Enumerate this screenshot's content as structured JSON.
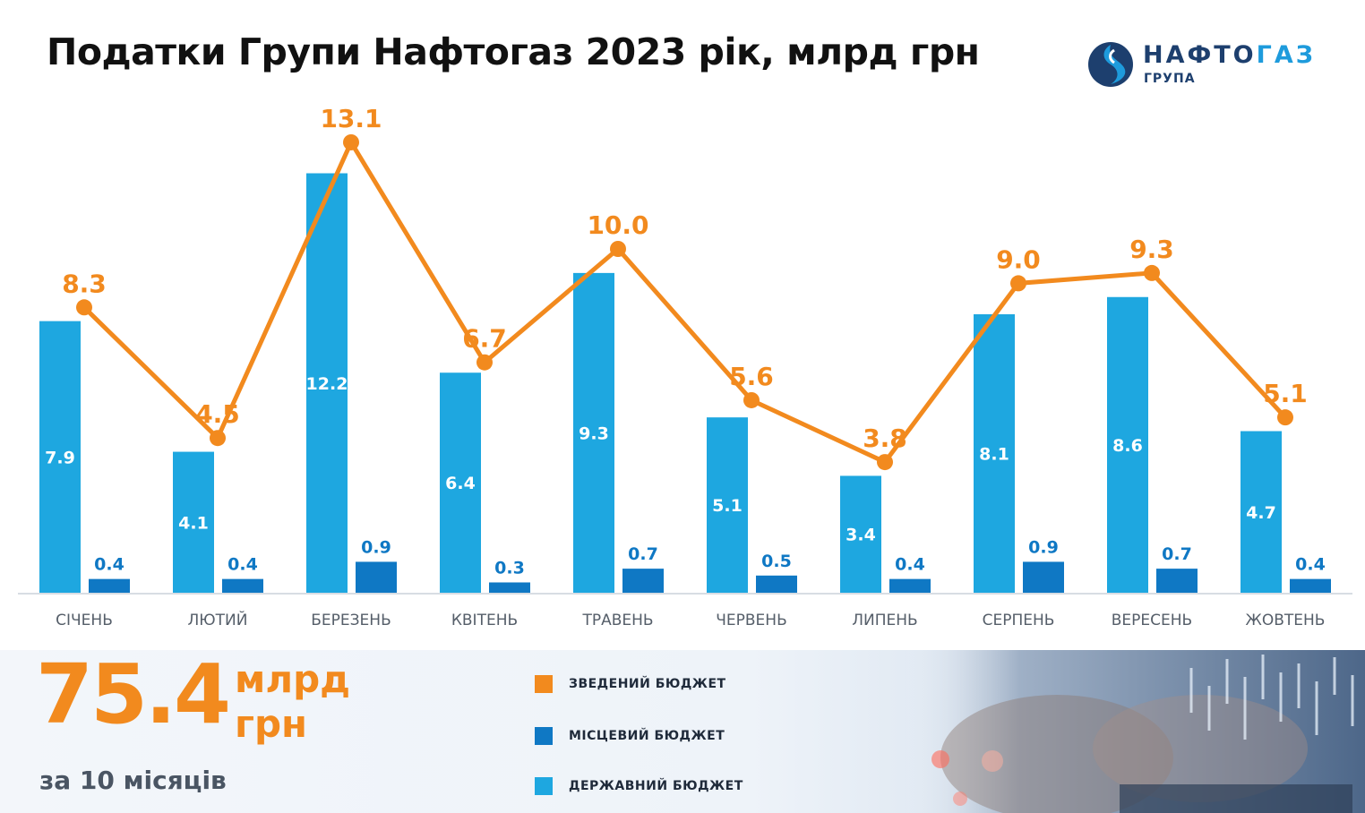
{
  "title": "Податки Групи Нафтогаз 2023 рік, млрд грн",
  "logo": {
    "word_main": "НАФТО",
    "word_accent": "ГАЗ",
    "subtitle": "ГРУПА"
  },
  "colors": {
    "state": "#1ea7e0",
    "local": "#0f78c4",
    "consolidated": "#f28a1e"
  },
  "chart_data": {
    "type": "bar",
    "categories": [
      "СІЧЕНЬ",
      "ЛЮТИЙ",
      "БЕРЕЗЕНЬ",
      "КВІТЕНЬ",
      "ТРАВЕНЬ",
      "ЧЕРВЕНЬ",
      "ЛИПЕНЬ",
      "СЕРПЕНЬ",
      "ВЕРЕСЕНЬ",
      "ЖОВТЕНЬ"
    ],
    "series": [
      {
        "name": "ДЕРЖАВНИЙ БЮДЖЕТ",
        "kind": "bar",
        "color": "#1ea7e0",
        "values": [
          7.9,
          4.1,
          12.2,
          6.4,
          9.3,
          5.1,
          3.4,
          8.1,
          8.6,
          4.7
        ]
      },
      {
        "name": "МІСЦЕВИЙ БЮДЖЕТ",
        "kind": "bar",
        "color": "#0f78c4",
        "values": [
          0.4,
          0.4,
          0.9,
          0.3,
          0.7,
          0.5,
          0.4,
          0.9,
          0.7,
          0.4
        ]
      },
      {
        "name": "ЗВЕДЕНИЙ БЮДЖЕТ",
        "kind": "line",
        "color": "#f28a1e",
        "values": [
          8.3,
          4.5,
          13.1,
          6.7,
          10.0,
          5.6,
          3.8,
          9.0,
          9.3,
          5.1
        ]
      }
    ],
    "value_labels": {
      "state": [
        "7.9",
        "4.1",
        "12.2",
        "6.4",
        "9.3",
        "5.1",
        "3.4",
        "8.1",
        "8.6",
        "4.7"
      ],
      "local": [
        "0.4",
        "0.4",
        "0.9",
        "0.3",
        "0.7",
        "0.5",
        "0.4",
        "0.9",
        "0.7",
        "0.4"
      ],
      "consolidated": [
        "8.3",
        "4.5",
        "13.1",
        "6.7",
        "10.0",
        "5.6",
        "3.8",
        "9.0",
        "9.3",
        "5.1"
      ]
    },
    "ylim": [
      0,
      16
    ],
    "grid": false,
    "legend_position": "bottom-center"
  },
  "summary": {
    "value": "75.4",
    "unit_line1": "млрд",
    "unit_line2": "грн",
    "caption": "за 10 місяців"
  },
  "legend": [
    {
      "label": "ЗВЕДЕНИЙ БЮДЖЕТ",
      "color": "#f28a1e"
    },
    {
      "label": "МІСЦЕВИЙ БЮДЖЕТ",
      "color": "#0f78c4"
    },
    {
      "label": "ДЕРЖАВНИЙ БЮДЖЕТ",
      "color": "#1ea7e0"
    }
  ]
}
